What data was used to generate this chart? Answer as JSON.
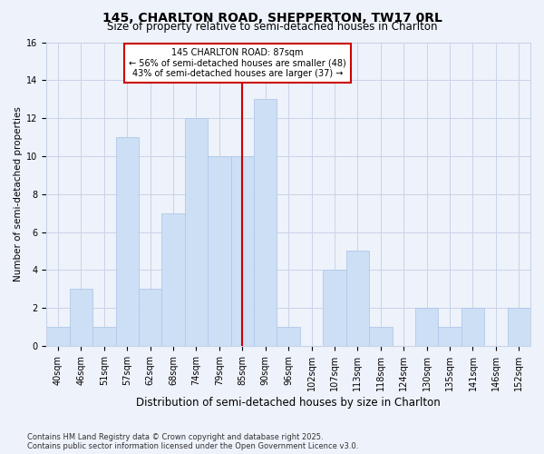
{
  "title": "145, CHARLTON ROAD, SHEPPERTON, TW17 0RL",
  "subtitle": "Size of property relative to semi-detached houses in Charlton",
  "xlabel": "Distribution of semi-detached houses by size in Charlton",
  "ylabel": "Number of semi-detached properties",
  "categories": [
    "40sqm",
    "46sqm",
    "51sqm",
    "57sqm",
    "62sqm",
    "68sqm",
    "74sqm",
    "79sqm",
    "85sqm",
    "90sqm",
    "96sqm",
    "102sqm",
    "107sqm",
    "113sqm",
    "118sqm",
    "124sqm",
    "130sqm",
    "135sqm",
    "141sqm",
    "146sqm",
    "152sqm"
  ],
  "values": [
    1,
    3,
    1,
    11,
    3,
    7,
    12,
    10,
    10,
    13,
    1,
    0,
    4,
    5,
    1,
    0,
    2,
    1,
    2,
    0,
    2
  ],
  "bar_color": "#ccdff5",
  "bar_edgecolor": "#b0c8e8",
  "property_line_x": 8,
  "annotation_line1": "145 CHARLTON ROAD: 87sqm",
  "annotation_line2": "← 56% of semi-detached houses are smaller (48)",
  "annotation_line3": "43% of semi-detached houses are larger (37) →",
  "annotation_box_color": "#ffffff",
  "annotation_box_edgecolor": "#cc0000",
  "red_line_color": "#cc0000",
  "ylim": [
    0,
    16
  ],
  "yticks": [
    0,
    2,
    4,
    6,
    8,
    10,
    12,
    14,
    16
  ],
  "grid_color": "#c8d4e8",
  "background_color": "#eef2fa",
  "footer_text": "Contains HM Land Registry data © Crown copyright and database right 2025.\nContains public sector information licensed under the Open Government Licence v3.0.",
  "title_fontsize": 10,
  "subtitle_fontsize": 8.5,
  "xlabel_fontsize": 8.5,
  "ylabel_fontsize": 7.5,
  "tick_fontsize": 7,
  "annotation_fontsize": 7,
  "footer_fontsize": 6
}
